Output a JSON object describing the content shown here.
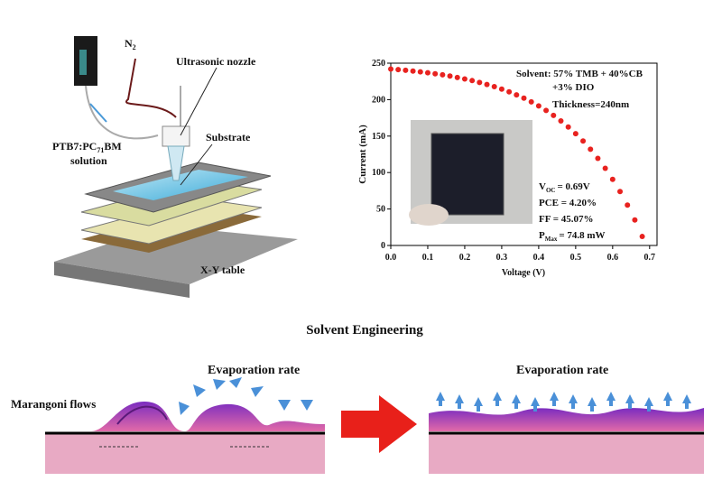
{
  "setup": {
    "n2": [
      "N",
      "2"
    ],
    "nozzle": "Ultrasonic nozzle",
    "substrate": "Substrate",
    "solution": [
      "PTB7:PC",
      "71",
      "BM"
    ],
    "solution_line2": "solution",
    "table": "X-Y table"
  },
  "chart_data": {
    "type": "scatter",
    "color": "#e8221f",
    "x_label": "Voltage (V)",
    "y_label": "Current (mA)",
    "x": [
      0,
      0.02,
      0.04,
      0.06,
      0.08,
      0.1,
      0.12,
      0.14,
      0.16,
      0.18,
      0.2,
      0.22,
      0.24,
      0.26,
      0.28,
      0.3,
      0.32,
      0.34,
      0.36,
      0.38,
      0.4,
      0.42,
      0.44,
      0.46,
      0.48,
      0.5,
      0.52,
      0.54,
      0.56,
      0.58,
      0.6,
      0.62,
      0.64,
      0.66,
      0.68
    ],
    "values": [
      242,
      241.2,
      240.2,
      239.2,
      238.1,
      236.9,
      235.5,
      234,
      232.3,
      230.4,
      228.4,
      226.1,
      223.6,
      220.8,
      217.8,
      214.4,
      210.7,
      206.5,
      202,
      196.9,
      191.3,
      185.2,
      178.4,
      170.8,
      162.5,
      153.3,
      143.2,
      131.9,
      119.5,
      105.8,
      90.6,
      73.9,
      55.4,
      34.9,
      12.3
    ],
    "xlim": [
      0,
      0.72
    ],
    "ylim": [
      0,
      250
    ],
    "xticks": [
      {
        "value": 0,
        "label": "0.0"
      },
      0.1,
      0.2,
      0.3,
      0.4,
      0.5,
      0.6,
      0.7
    ],
    "yticks": [
      0,
      50,
      100,
      150,
      200,
      250
    ],
    "annotations": [
      "Solvent: 57% TMB + 40%CB",
      "+3% DIO",
      "Thickness=240nm"
    ],
    "metrics": [
      [
        "V",
        "OC",
        "= 0.69V"
      ],
      [
        "PCE = 4.20%"
      ],
      [
        "FF = 45.07%"
      ],
      [
        "P",
        "Max",
        "=  74.8 mW"
      ]
    ]
  },
  "bottom": {
    "title": "Solvent Engineering",
    "left_rate": "Evaporation rate",
    "flows": "Marangoni flows",
    "right_rate": "Evaporation rate"
  }
}
